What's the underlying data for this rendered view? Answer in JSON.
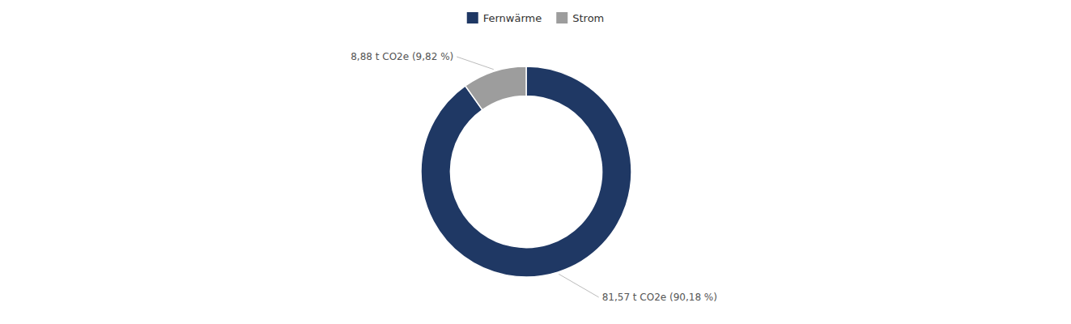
{
  "chart_data": {
    "type": "donut",
    "categories": [
      "Fernwärme",
      "Strom"
    ],
    "values": [
      90.18,
      9.82
    ],
    "colors": [
      "#1f3864",
      "#9d9d9d"
    ],
    "annotations": [
      "81,57 t  CO2e (90,18 %)",
      "8,88 t  CO2e (9,82 %)"
    ],
    "legend": "top"
  }
}
